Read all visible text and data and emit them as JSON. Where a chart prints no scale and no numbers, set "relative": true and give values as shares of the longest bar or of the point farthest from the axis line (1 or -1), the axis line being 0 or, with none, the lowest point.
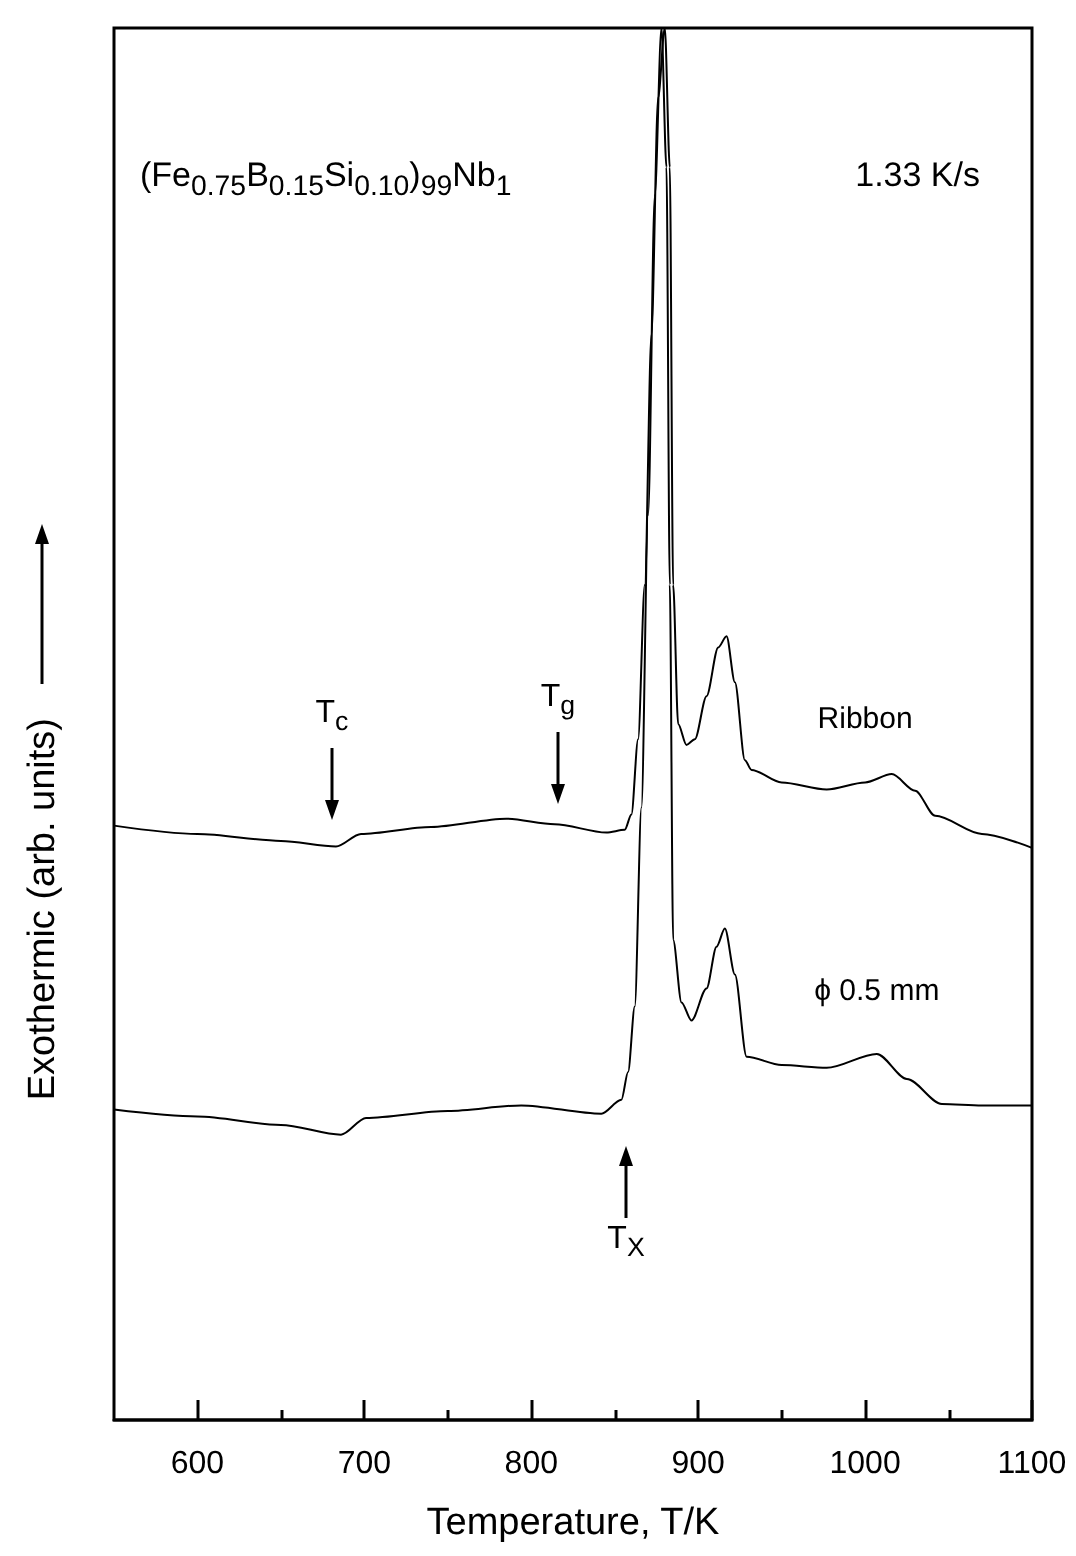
{
  "chart_data": {
    "type": "line",
    "relative": true,
    "xlabel": "Temperature, T/K",
    "ylabel": "Exothermic (arb. units)",
    "xlim": [
      550,
      1100
    ],
    "xticks": [
      600,
      700,
      800,
      900,
      1000,
      1100
    ],
    "line_style": "solid",
    "annotations": [
      "(Fe$_{0.75}$B$_{0.15}$Si$_{0.10}$)$_{99}$Nb$_{1}$",
      "1.33 K/s",
      "T$_{c}$",
      "T$_{g}$",
      "T$_{X}$"
    ],
    "series": [
      {
        "name": "Ribbon",
        "color": "#000000",
        "x": [
          550,
          600,
          650,
          683,
          698,
          740,
          785,
          814,
          845,
          856,
          860,
          864,
          868,
          872,
          876,
          880,
          883,
          885,
          888,
          893,
          898,
          905,
          912,
          917,
          922,
          928,
          932,
          950,
          977,
          1000,
          1016,
          1030,
          1042,
          1070,
          1100
        ],
        "values": [
          0.427,
          0.421,
          0.416,
          0.412,
          0.421,
          0.426,
          0.432,
          0.428,
          0.422,
          0.424,
          0.435,
          0.489,
          0.6,
          0.78,
          0.95,
          1.0,
          0.9,
          0.6,
          0.5,
          0.485,
          0.489,
          0.52,
          0.555,
          0.563,
          0.53,
          0.474,
          0.467,
          0.458,
          0.453,
          0.458,
          0.464,
          0.452,
          0.434,
          0.421,
          0.411
        ]
      },
      {
        "name": "ϕ 0.5 mm",
        "color": "#000000",
        "x": [
          550,
          600,
          650,
          686,
          701,
          750,
          794,
          842,
          854,
          858,
          862,
          866,
          870,
          874,
          878,
          881,
          883,
          885,
          890,
          896,
          905,
          911,
          916,
          922,
          929,
          950,
          977,
          1007,
          1025,
          1046,
          1070,
          1100
        ],
        "values": [
          0.223,
          0.218,
          0.212,
          0.205,
          0.217,
          0.222,
          0.226,
          0.22,
          0.23,
          0.25,
          0.297,
          0.44,
          0.65,
          0.88,
          1.0,
          0.9,
          0.6,
          0.345,
          0.3,
          0.287,
          0.31,
          0.34,
          0.353,
          0.32,
          0.261,
          0.255,
          0.253,
          0.263,
          0.245,
          0.227,
          0.226,
          0.226
        ]
      }
    ]
  }
}
